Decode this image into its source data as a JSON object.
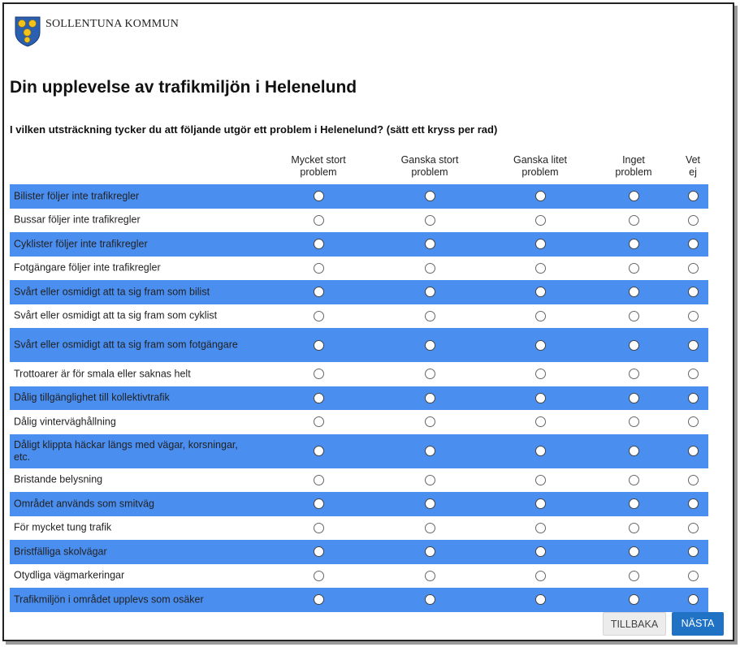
{
  "header": {
    "org_name": "SOLLENTUNA KOMMUN"
  },
  "page": {
    "title": "Din upplevelse av trafikmiljön i Helenelund",
    "question": "I vilken utsträckning tycker du att följande utgör ett problem i Helenelund? (sätt ett kryss per rad)"
  },
  "columns": [
    "Mycket stort\nproblem",
    "Ganska stort\nproblem",
    "Ganska litet\nproblem",
    "Inget\nproblem",
    "Vet\nej"
  ],
  "rows": [
    "Bilister följer inte trafikregler",
    "Bussar följer inte trafikregler",
    "Cyklister följer inte trafikregler",
    "Fotgängare följer inte trafikregler",
    "Svårt eller osmidigt att ta sig fram som bilist",
    "Svårt eller osmidigt att ta sig fram som cyklist",
    "Svårt eller osmidigt att ta sig fram som fotgängare",
    "Trottoarer är för smala eller saknas helt",
    "Dålig tillgänglighet till kollektivtrafik",
    "Dålig vinterväghållning",
    "Dåligt klippta häckar längs med vägar, korsningar, etc.",
    "Bristande belysning",
    "Området används som smitväg",
    "För mycket tung trafik",
    "Bristfälliga skolvägar",
    "Otydliga vägmarkeringar",
    "Trafikmiljön i området upplevs som osäker"
  ],
  "buttons": {
    "back_label": "TILLBAKA",
    "next_label": "NÄSTA"
  },
  "colors": {
    "shaded_row": "#4a8ef0",
    "primary_button": "#1f72c4"
  }
}
